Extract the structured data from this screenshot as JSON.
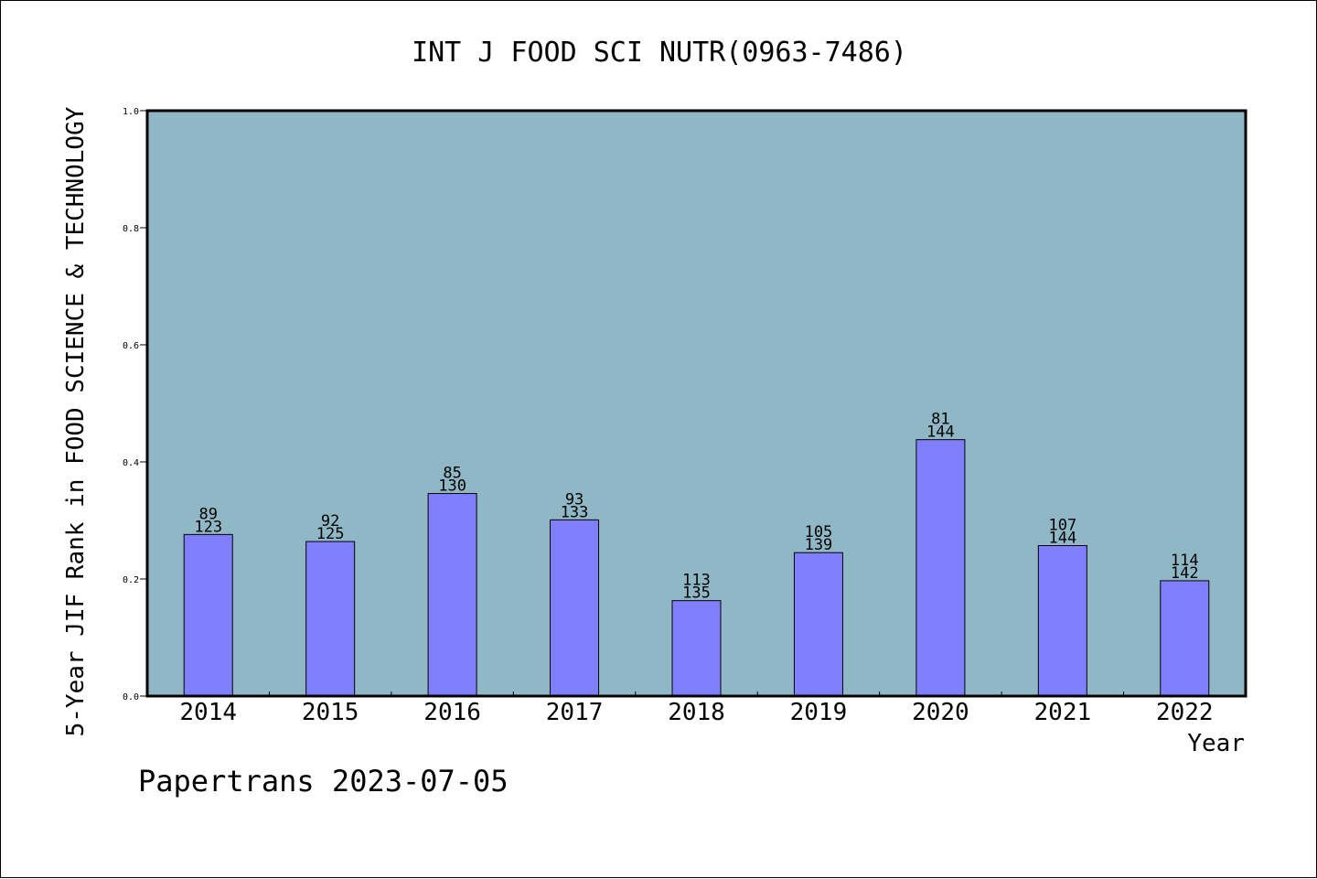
{
  "chart_data": {
    "type": "bar",
    "title": "INT J FOOD SCI NUTR(0963-7486)",
    "xlabel": "Year",
    "ylabel": "5-Year JIF Rank in FOOD SCIENCE & TECHNOLOGY",
    "footer": "Papertrans 2023-07-05",
    "categories": [
      "2014",
      "2015",
      "2016",
      "2017",
      "2018",
      "2019",
      "2020",
      "2021",
      "2022"
    ],
    "values": [
      0.276,
      0.264,
      0.346,
      0.301,
      0.163,
      0.245,
      0.438,
      0.257,
      0.197
    ],
    "labels": [
      [
        "89",
        "123"
      ],
      [
        "92",
        "125"
      ],
      [
        "85",
        "130"
      ],
      [
        "93",
        "133"
      ],
      [
        "113",
        "135"
      ],
      [
        "105",
        "139"
      ],
      [
        "81",
        "144"
      ],
      [
        "107",
        "144"
      ],
      [
        "114",
        "142"
      ]
    ],
    "ylim": [
      0,
      1.0
    ],
    "yticks": [
      "0.0",
      "0.2",
      "0.4",
      "0.6",
      "0.8",
      "1.0"
    ],
    "grid": false,
    "plot_background": "#8fb7c5",
    "bar_color": "#8080ff"
  }
}
